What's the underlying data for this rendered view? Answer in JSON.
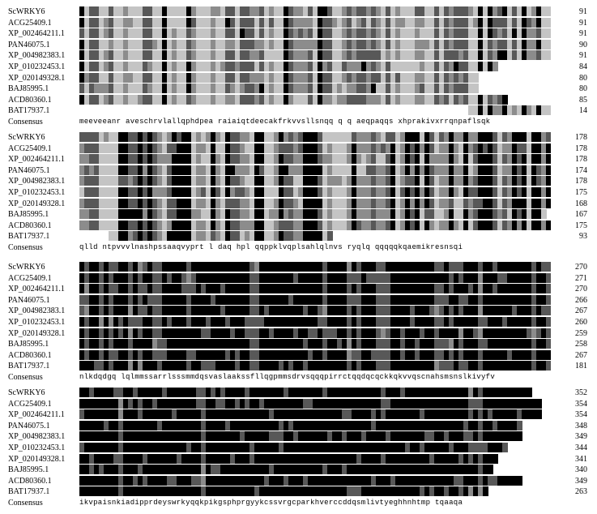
{
  "sequence_names": [
    "ScWRKY6",
    "ACG25409.1",
    "XP_002464211.1",
    "PAN46075.1",
    "XP_004982383.1",
    "XP_010232453.1",
    "XP_020149328.1",
    "BAJ85995.1",
    "ACD80360.1",
    "BAT17937.1"
  ],
  "consensus_label": "Consensus",
  "blocks": [
    {
      "end_positions": [
        "91",
        "91",
        "91",
        "90",
        "91",
        "84",
        "80",
        "80",
        "85",
        "14"
      ],
      "consensus": "meeveeanr aveschrvlallqphdpea raiaiqtdeecakfrkvvsllsnqq q q aeqpaqqs    xhprakivxrrqnpaflsqk"
    },
    {
      "end_positions": [
        "178",
        "178",
        "178",
        "174",
        "178",
        "175",
        "168",
        "167",
        "175",
        "93"
      ],
      "consensus": "qlld ntpvvvlnashpssaaqvyprt    l daq  hpl   qqppklvqplsahlqlnvs ryqlq    qqqqqkqaemikresnsqi"
    },
    {
      "end_positions": [
        "270",
        "271",
        "270",
        "266",
        "267",
        "260",
        "259",
        "258",
        "267",
        "181"
      ],
      "consensus": "nlkdqdgq lqlmmssarrlsssmmdqsvaslaakssfllqgpmmsdrvsqqqpirrctqqdqcqckkqkvvqscnahsmsnslkivyfv"
    },
    {
      "end_positions": [
        "352",
        "354",
        "354",
        "348",
        "349",
        "344",
        "341",
        "340",
        "349",
        "263"
      ],
      "consensus": "ikvpaisnkiadipprdeyswrkyqqkpikgsphprgyykcssvrgcparkhverccddqsmlivtyeghhnhtmp tqaaqa"
    }
  ],
  "colors": {
    "identical": "#000000",
    "high_similarity": "#585858",
    "mid_similarity": "#8c8c8c",
    "low_similarity": "#c4c4c4",
    "background": "#ffffff"
  }
}
